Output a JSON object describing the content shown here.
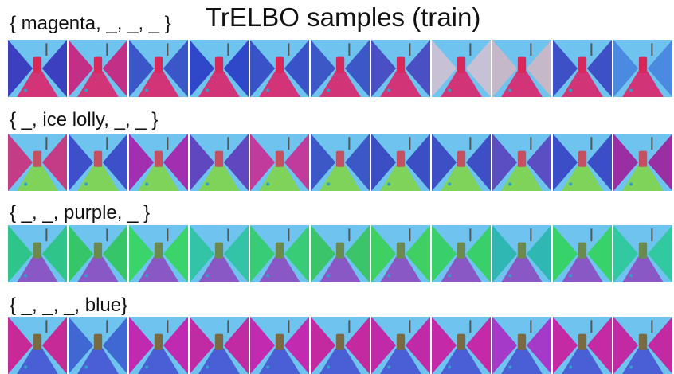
{
  "title": "TrELBO samples (train)",
  "rows": [
    {
      "label": "{ magenta, _, _, _ }",
      "wall_color": "#c0286e",
      "floor_color": "#d13578",
      "object_color": "#d8285a",
      "sky_color": "#6ec4ef",
      "variant_tints": [
        "#3b3fc0",
        "#c22f86",
        "#3b56c8",
        "#2f48c9",
        "#3952c8",
        "#3b58c6",
        "#4b4fc4",
        "#c7c1d6",
        "#c5b8c8",
        "#3e50c5",
        "#4a8ae0"
      ],
      "sample_count": 11
    },
    {
      "label": "{ _, ice lolly, _, _ }",
      "wall_color": "#9e2fa8",
      "floor_color": "#7fd35b",
      "object_color": "#c45060",
      "sky_color": "#6ec4ef",
      "variant_tints": [
        "#c43c86",
        "#3d4fc9",
        "#a12fb0",
        "#6046bf",
        "#c03b9b",
        "#3c58c7",
        "#3b4ec3",
        "#3e4fc6",
        "#5b4ec3",
        "#3b4ec7",
        "#9a2fa4"
      ],
      "sample_count": 11
    },
    {
      "label": "{ _, _, purple, _ }",
      "wall_color": "#38c96a",
      "floor_color": "#8a58c4",
      "object_color": "#6a8a50",
      "sky_color": "#6ec4ef",
      "variant_tints": [
        "#2fc58a",
        "#37c56a",
        "#3ad46a",
        "#33c3a6",
        "#39cc77",
        "#3bc46a",
        "#3fcf62",
        "#39cf6b",
        "#2fb8b3",
        "#37d26a",
        "#33c9a0"
      ],
      "sample_count": 11
    },
    {
      "label": "{ _, _, _, blue}",
      "wall_color": "#c02aa0",
      "floor_color": "#4a5fd6",
      "object_color": "#7a6a44",
      "sky_color": "#6ec4ef",
      "variant_tints": [
        "#c52a96",
        "#3f68d3",
        "#c02ab1",
        "#c02aa3",
        "#c22ab0",
        "#c42aa0",
        "#c02aa6",
        "#c42aa7",
        "#a43ac7",
        "#c32aa4",
        "#c22aa4"
      ],
      "sample_count": 11
    }
  ]
}
